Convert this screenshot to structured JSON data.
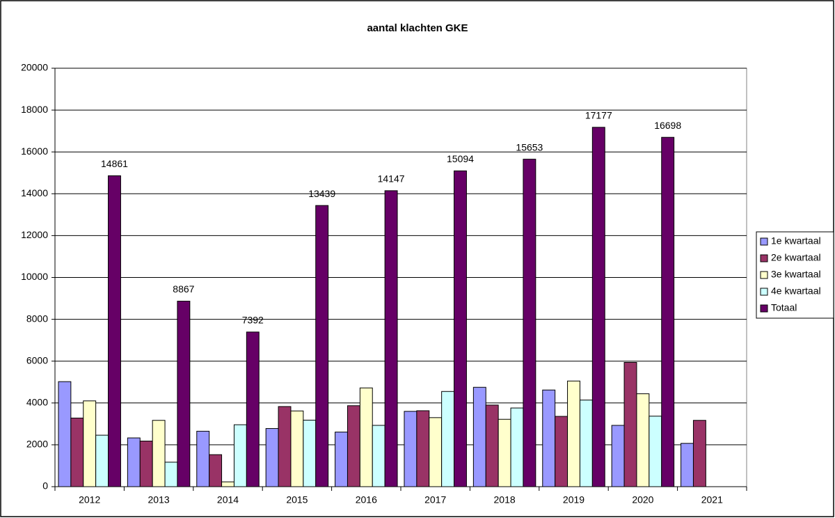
{
  "chart_data": {
    "type": "bar",
    "title": "aantal klachten GKE",
    "categories": [
      "2012",
      "2013",
      "2014",
      "2015",
      "2016",
      "2017",
      "2018",
      "2019",
      "2020",
      "2021"
    ],
    "series": [
      {
        "name": "1e kwartaal",
        "color": "#9999ff",
        "values": [
          5020,
          2330,
          2650,
          2780,
          2610,
          3600,
          4750,
          4620,
          2930,
          2070
        ]
      },
      {
        "name": "2e kwartaal",
        "color": "#993366",
        "values": [
          3280,
          2180,
          1530,
          3830,
          3870,
          3630,
          3900,
          3360,
          5940,
          3170
        ]
      },
      {
        "name": "3e kwartaal",
        "color": "#ffffcc",
        "values": [
          4100,
          3170,
          230,
          3620,
          4720,
          3300,
          3220,
          5050,
          4440,
          null
        ]
      },
      {
        "name": "4e kwartaal",
        "color": "#ccffff",
        "values": [
          2460,
          1170,
          2960,
          3180,
          2930,
          4550,
          3760,
          4140,
          3370,
          null
        ]
      },
      {
        "name": "Totaal",
        "color": "#660066",
        "values": [
          14861,
          8867,
          7392,
          13439,
          14147,
          15094,
          15653,
          17177,
          16698,
          null
        ]
      }
    ],
    "data_labels_series": 4,
    "ylim": [
      0,
      20000
    ],
    "yticks": [
      0,
      2000,
      4000,
      6000,
      8000,
      10000,
      12000,
      14000,
      16000,
      18000,
      20000
    ],
    "grid": true,
    "legend": "right"
  }
}
